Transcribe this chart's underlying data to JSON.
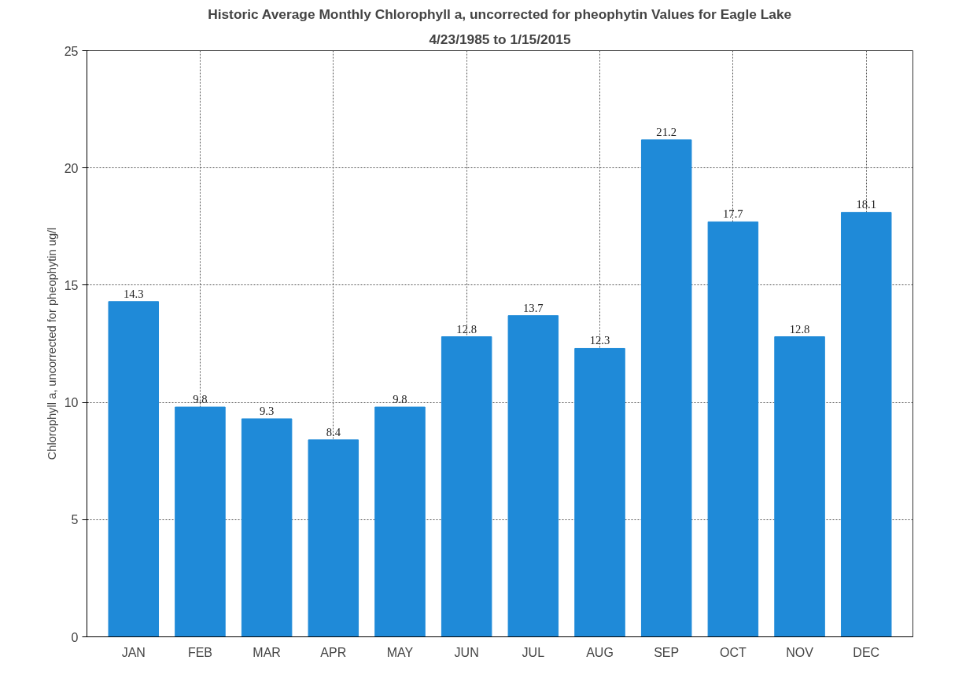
{
  "chart_data": {
    "type": "bar",
    "title": "Historic Average Monthly Chlorophyll a, uncorrected for pheophytin Values for Eagle Lake",
    "subtitle": "4/23/1985 to 1/15/2015",
    "ylabel": "Chlorophyll a, uncorrected for pheophytin ug/l",
    "categories": [
      "JAN",
      "FEB",
      "MAR",
      "APR",
      "MAY",
      "JUN",
      "JUL",
      "AUG",
      "SEP",
      "OCT",
      "NOV",
      "DEC"
    ],
    "values": [
      14.3,
      9.8,
      9.3,
      8.4,
      9.8,
      12.8,
      13.7,
      12.3,
      21.2,
      17.7,
      12.8,
      18.1
    ],
    "color": "#1f8ad8",
    "ylim": [
      0,
      25
    ],
    "yticks": [
      0,
      5,
      10,
      15,
      20,
      25
    ],
    "grid": true,
    "data_labels": true
  }
}
